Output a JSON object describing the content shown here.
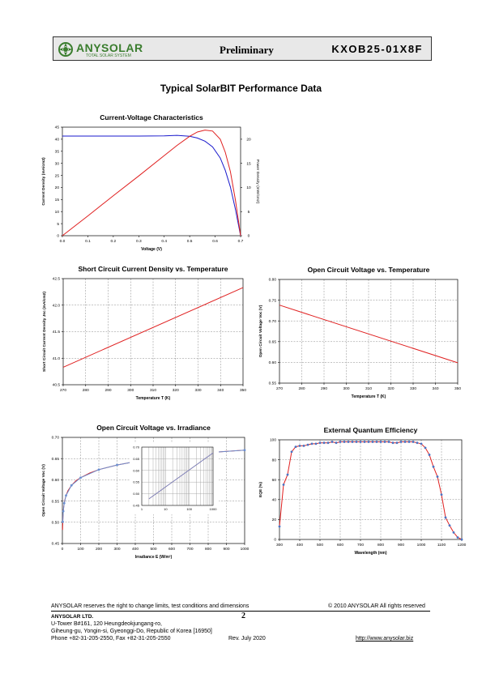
{
  "header": {
    "logo_name": "ANYSOLAR",
    "logo_tagline": "TOTAL SOLAR SYSTEM",
    "status": "Preliminary",
    "model": "KXOB25-01X8F"
  },
  "page_title": "Typical SolarBIT Performance Data",
  "chart_data": [
    {
      "id": "iv",
      "type": "line",
      "title": "Current-Voltage Characteristics",
      "xlabel": "Voltage (V)",
      "ylabel": "Current Density (mA/cm2)",
      "y2label": "Power Density (mW/cm2)",
      "xlim": [
        0,
        0.7
      ],
      "ylim": [
        0,
        45
      ],
      "y2lim": [
        0,
        22.5
      ],
      "xticks": [
        "0.0",
        "0.1",
        "0.2",
        "0.3",
        "0.4",
        "0.5",
        "0.6",
        "0.7"
      ],
      "yticks": [
        "0",
        "5",
        "10",
        "15",
        "20",
        "25",
        "30",
        "35",
        "40",
        "45"
      ],
      "y2ticks": [
        "0",
        "5",
        "10",
        "15",
        "20"
      ],
      "grid": false,
      "series": [
        {
          "axis": "left",
          "color": "#1a1acc",
          "x": [
            0,
            0.1,
            0.2,
            0.3,
            0.4,
            0.45,
            0.5,
            0.53,
            0.56,
            0.59,
            0.62,
            0.64,
            0.66,
            0.68,
            0.7
          ],
          "y": [
            41.3,
            41.3,
            41.3,
            41.3,
            41.4,
            41.6,
            41.2,
            40.5,
            39.2,
            36.8,
            32.2,
            27.1,
            20.2,
            10.8,
            0
          ]
        },
        {
          "axis": "right",
          "color": "#e02020",
          "x": [
            0,
            0.1,
            0.2,
            0.3,
            0.4,
            0.45,
            0.5,
            0.53,
            0.56,
            0.59,
            0.62,
            0.64,
            0.66,
            0.68,
            0.7
          ],
          "y": [
            0,
            4.1,
            8.3,
            12.4,
            16.6,
            18.7,
            20.6,
            21.5,
            21.9,
            21.7,
            20.0,
            17.3,
            13.3,
            7.3,
            0
          ]
        }
      ]
    },
    {
      "id": "isc",
      "type": "line",
      "title": "Short Circuit Current Density vs. Temperature",
      "xlabel": "Temperature T (K)",
      "ylabel": "Short Circuit Current Density Jsc (mA/cm2)",
      "xlim": [
        270,
        350
      ],
      "ylim": [
        40.5,
        42.5
      ],
      "xticks": [
        "270",
        "280",
        "290",
        "300",
        "310",
        "320",
        "330",
        "340",
        "350"
      ],
      "yticks": [
        "40.5",
        "41.0",
        "41.5",
        "42.0",
        "42.5"
      ],
      "grid": true,
      "series": [
        {
          "color": "#e02020",
          "x": [
            270,
            350
          ],
          "y": [
            40.83,
            42.33
          ]
        }
      ]
    },
    {
      "id": "voct",
      "type": "line",
      "title": "Open Circuit Voltage vs. Temperature",
      "xlabel": "Temperature T (K)",
      "ylabel": "Open Circuit Voltage Voc (V)",
      "xlim": [
        270,
        350
      ],
      "ylim": [
        0.55,
        0.8
      ],
      "xticks": [
        "270",
        "280",
        "290",
        "300",
        "310",
        "320",
        "330",
        "340",
        "350"
      ],
      "yticks": [
        "0.55",
        "0.60",
        "0.65",
        "0.70",
        "0.75",
        "0.80"
      ],
      "grid": true,
      "series": [
        {
          "color": "#e02020",
          "x": [
            270,
            350
          ],
          "y": [
            0.738,
            0.599
          ]
        }
      ]
    },
    {
      "id": "vocg",
      "type": "line",
      "title": "Open Circuit Voltage vs. Irradiance",
      "xlabel": "Irradiance E (W/m²)",
      "ylabel": "Open Circuit Voltage Voc (V)",
      "xlim": [
        0,
        1000
      ],
      "ylim": [
        0.45,
        0.7
      ],
      "xticks": [
        "0",
        "100",
        "200",
        "300",
        "400",
        "500",
        "600",
        "700",
        "800",
        "900",
        "1000"
      ],
      "yticks": [
        "0.45",
        "0.50",
        "0.55",
        "0.60",
        "0.65",
        "0.70"
      ],
      "grid": true,
      "series": [
        {
          "color": "#e02020",
          "x": [
            1,
            2,
            3,
            5,
            8,
            12,
            20,
            30,
            50,
            75,
            100,
            150,
            200,
            300,
            400,
            500,
            600,
            700,
            800,
            900,
            1000
          ],
          "y": [
            0.482,
            0.501,
            0.512,
            0.526,
            0.539,
            0.55,
            0.563,
            0.574,
            0.587,
            0.598,
            0.605,
            0.616,
            0.624,
            0.635,
            0.643,
            0.65,
            0.655,
            0.66,
            0.664,
            0.667,
            0.67
          ]
        },
        {
          "color": "#6a8fd0",
          "marker": true,
          "x": [
            2,
            5,
            10,
            20,
            50,
            100,
            200,
            300,
            450,
            600,
            800,
            1000
          ],
          "y": [
            0.501,
            0.526,
            0.545,
            0.563,
            0.587,
            0.605,
            0.624,
            0.635,
            0.647,
            0.655,
            0.664,
            0.67
          ]
        }
      ],
      "inset": {
        "xscale": "log",
        "xlim": [
          1,
          1000
        ],
        "ylim": [
          0.45,
          0.7
        ],
        "xticks": [
          "1",
          "10",
          "100",
          "1000"
        ],
        "yticks": [
          "0.45",
          "0.50",
          "0.55",
          "0.60",
          "0.65",
          "0.70"
        ],
        "series": [
          {
            "color": "#e02020",
            "x": [
              2,
              1000
            ],
            "y": [
              0.478,
              0.675
            ]
          },
          {
            "color": "#6a8fd0",
            "x": [
              2,
              1000
            ],
            "y": [
              0.478,
              0.675
            ]
          }
        ]
      }
    },
    {
      "id": "eqe",
      "type": "line",
      "title": "External Quantum Efficiency",
      "xlabel": "Wavelength (nm)",
      "ylabel": "EQE (%)",
      "xlim": [
        300,
        1200
      ],
      "ylim": [
        0,
        100
      ],
      "xticks": [
        "300",
        "400",
        "500",
        "600",
        "700",
        "800",
        "900",
        "1000",
        "1100",
        "1200"
      ],
      "yticks": [
        "0",
        "20",
        "40",
        "60",
        "80",
        "100"
      ],
      "grid": true,
      "series": [
        {
          "color": "#e02020",
          "marker": true,
          "markerColor": "#4a74c4",
          "x": [
            300,
            320,
            340,
            360,
            380,
            400,
            420,
            440,
            460,
            480,
            500,
            520,
            540,
            560,
            580,
            600,
            620,
            640,
            660,
            680,
            700,
            720,
            740,
            760,
            780,
            800,
            820,
            840,
            860,
            880,
            900,
            920,
            940,
            960,
            980,
            1000,
            1020,
            1040,
            1060,
            1080,
            1100,
            1120,
            1140,
            1160,
            1180,
            1200
          ],
          "y": [
            13,
            55,
            65,
            88,
            93,
            94,
            94,
            95,
            96,
            96,
            97,
            97,
            97,
            98,
            97,
            98,
            98,
            98,
            98,
            98,
            98,
            98,
            98,
            98,
            98,
            98,
            98,
            98,
            97,
            97,
            98,
            98,
            98,
            98,
            97,
            96,
            92,
            85,
            73,
            63,
            45,
            22,
            14,
            7,
            2,
            0
          ]
        }
      ]
    }
  ],
  "footer": {
    "disclaimer": "ANYSOLAR reserves the right to change limits, test conditions and dimensions",
    "copyright": "© 2010 ANYSOLAR All rights reserved",
    "company": "ANYSOLAR LTD.",
    "page_number": "2",
    "address1": "U-Tower B#161, 120 Heungdeokjungang-ro,",
    "address2": "Giheung-gu, Yongin-si, Gyeonggi-Do, Republic of Korea [16950]",
    "phone": "Phone +82-31-205-2550, Fax +82-31-205-2550",
    "revision": "Rev. July 2020",
    "website": "http://www.anysolar.biz"
  }
}
